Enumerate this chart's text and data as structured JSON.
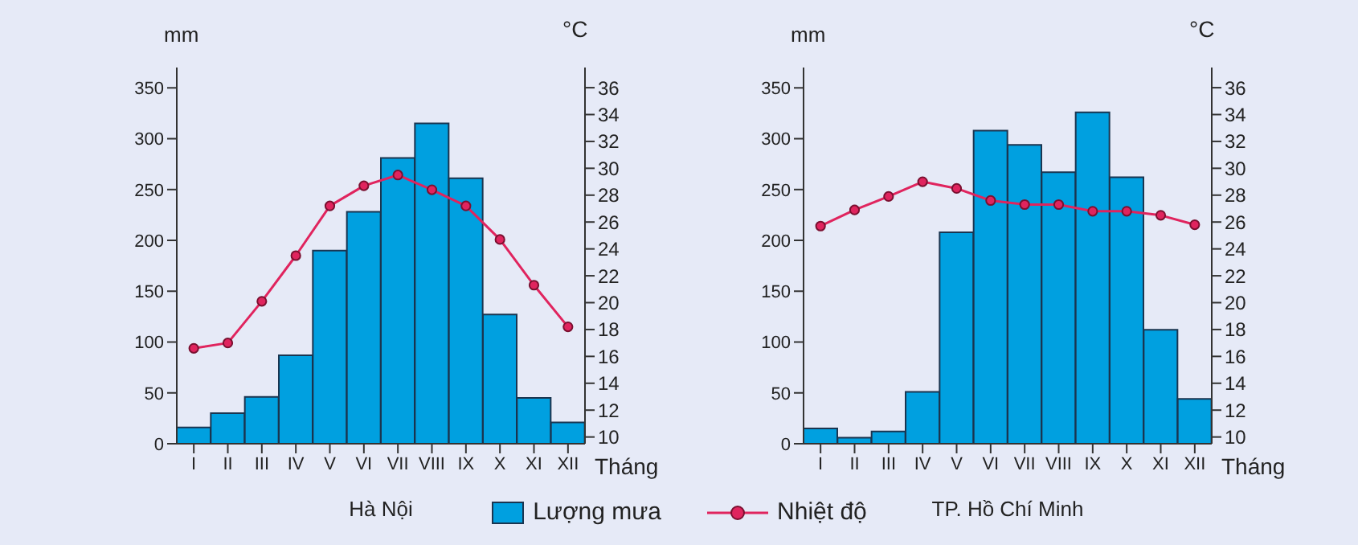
{
  "chart_data": [
    {
      "type": "bar",
      "title": "Hà Nội",
      "xlabel": "Tháng",
      "ylabel": "mm",
      "y2label": "°C",
      "categories": [
        "I",
        "II",
        "III",
        "IV",
        "V",
        "VI",
        "VII",
        "VIII",
        "IX",
        "X",
        "XI",
        "XII"
      ],
      "series": [
        {
          "name": "Lượng mưa",
          "color": "#00a0e0",
          "values": [
            16,
            30,
            46,
            87,
            190,
            228,
            281,
            315,
            261,
            127,
            45,
            21
          ]
        },
        {
          "name": "Nhiệt độ",
          "type": "line",
          "axis": "y2",
          "color": "#e0245e",
          "values": [
            16.6,
            17.0,
            20.1,
            23.5,
            27.2,
            28.7,
            29.5,
            28.4,
            27.2,
            24.7,
            21.3,
            18.2
          ]
        }
      ],
      "ylim": [
        0,
        370
      ],
      "yticks": [
        0,
        50,
        100,
        150,
        200,
        250,
        300,
        350
      ],
      "y2lim": [
        9.5,
        37.5
      ],
      "y2ticks": [
        10,
        12,
        14,
        16,
        18,
        20,
        22,
        24,
        26,
        28,
        30,
        32,
        34,
        36
      ],
      "legend": "bottom",
      "marker": "circle"
    },
    {
      "type": "bar",
      "title": "TP. Hồ Chí Minh",
      "xlabel": "Tháng",
      "ylabel": "mm",
      "y2label": "°C",
      "categories": [
        "I",
        "II",
        "III",
        "IV",
        "V",
        "VI",
        "VII",
        "VIII",
        "IX",
        "X",
        "XI",
        "XII"
      ],
      "series": [
        {
          "color": "#00a0e0",
          "values": [
            15,
            6,
            12,
            51,
            208,
            308,
            294,
            267,
            326,
            262,
            112,
            44
          ]
        },
        {
          "type": "line",
          "axis": "y2",
          "color": "#e0245e",
          "values": [
            25.7,
            26.9,
            27.9,
            29.0,
            28.5,
            27.6,
            27.3,
            27.3,
            26.8,
            26.8,
            26.5,
            25.8
          ]
        }
      ],
      "ylim": [
        0,
        370
      ],
      "yticks": [
        0,
        50,
        100,
        150,
        200,
        250,
        300,
        350
      ],
      "y2lim": [
        9.5,
        37.5
      ],
      "y2ticks": [
        10,
        12,
        14,
        16,
        18,
        20,
        22,
        24,
        26,
        28,
        30,
        32,
        34,
        36
      ],
      "marker": "circle"
    }
  ]
}
